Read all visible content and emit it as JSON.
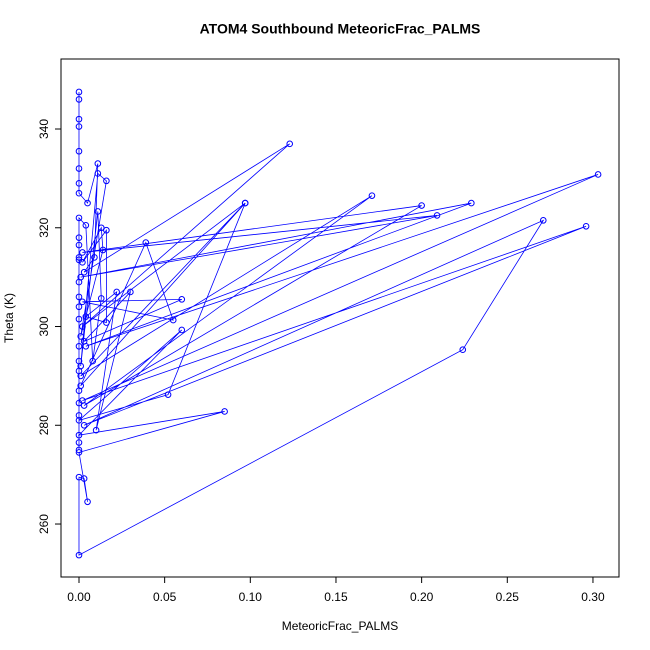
{
  "chart_data": {
    "type": "line",
    "title": "ATOM4 Southbound MeteoricFrac_PALMS",
    "x_label": "MeteoricFrac_PALMS",
    "y_label": "Theta (K)",
    "color": "#0000ff",
    "markers": true,
    "x": [
      0,
      0,
      0,
      0,
      0,
      0,
      0,
      0,
      0.005,
      0.011,
      0.009,
      0.003,
      0.123,
      0.002,
      0.097,
      0.001,
      0.171,
      0.003,
      0.2,
      0.002,
      0.209,
      0.001,
      0.229,
      0.004,
      0.303,
      0.002,
      0.296,
      0.003,
      0.271,
      0.224,
      0,
      0,
      0.003,
      0.005,
      0,
      0.085,
      0,
      0.06,
      0,
      0.052,
      0.097,
      0.001,
      0.039,
      0.055,
      0.002,
      0.06,
      0.003,
      0.03,
      0.01,
      0.022,
      0.004,
      0.016,
      0.016,
      0.002,
      0.013,
      0.014,
      0.001,
      0.016,
      0.011,
      0.001,
      0.011,
      0.013,
      0.008,
      0.004,
      0,
      0,
      0,
      0,
      0,
      0,
      0,
      0,
      0,
      0,
      0,
      0,
      0,
      0,
      0,
      0,
      0
    ],
    "values": [
      347.5,
      346,
      342,
      340.5,
      335.5,
      332,
      329,
      327,
      325,
      333,
      314,
      311,
      337,
      300,
      325,
      290,
      326.5,
      284,
      324.5,
      315,
      322.5,
      310,
      325,
      296,
      330.8,
      285,
      320.3,
      280,
      321.5,
      295.3,
      253.7,
      269.5,
      269.2,
      264.5,
      274.5,
      282.8,
      278,
      299.3,
      281,
      286.2,
      325,
      288,
      317,
      301.3,
      305,
      305.5,
      297,
      307,
      279,
      307,
      302,
      300.8,
      319.5,
      313,
      320,
      315.5,
      298,
      329.5,
      331,
      292,
      323.3,
      305.7,
      293,
      320.5,
      322,
      318,
      316.5,
      314,
      313.5,
      309,
      306,
      304,
      301.5,
      296,
      293,
      291,
      287,
      284.5,
      282,
      276.5,
      275
    ],
    "xlim": [
      -0.0105,
      0.3152
    ],
    "ylim": [
      249.27,
      354.18
    ],
    "xticks": [
      {
        "value": 0,
        "label": "0.00"
      },
      0.05,
      {
        "value": 0.1,
        "label": "0.10"
      },
      0.15,
      {
        "value": 0.2,
        "label": "0.20"
      },
      0.25,
      {
        "value": 0.3,
        "label": "0.30"
      }
    ],
    "yticks": [
      260,
      280,
      300,
      320,
      340
    ]
  }
}
